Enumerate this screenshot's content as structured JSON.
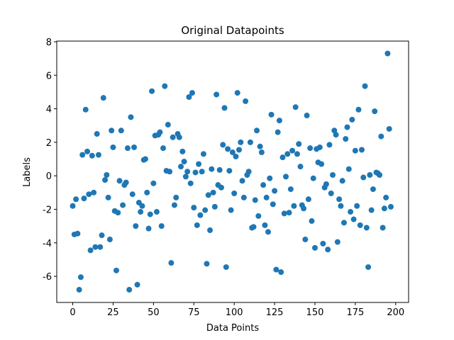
{
  "chart_data": {
    "type": "scatter",
    "title": "Original Datapoints",
    "x_label": "Data Points",
    "y_label": "Labels",
    "color": "#1f77b4",
    "x": [
      0,
      1,
      2,
      3,
      4,
      5,
      6,
      7,
      8,
      9,
      10,
      11,
      12,
      13,
      14,
      15,
      16,
      17,
      18,
      19,
      20,
      21,
      22,
      23,
      24,
      25,
      26,
      27,
      28,
      29,
      30,
      31,
      32,
      33,
      34,
      35,
      36,
      37,
      38,
      39,
      40,
      41,
      42,
      43,
      44,
      45,
      46,
      47,
      48,
      49,
      50,
      51,
      52,
      53,
      54,
      55,
      56,
      57,
      58,
      59,
      60,
      61,
      62,
      63,
      64,
      65,
      66,
      67,
      68,
      69,
      70,
      71,
      72,
      73,
      74,
      75,
      76,
      77,
      78,
      79,
      80,
      81,
      82,
      83,
      84,
      85,
      86,
      87,
      88,
      89,
      90,
      91,
      92,
      93,
      94,
      95,
      96,
      97,
      98,
      99,
      100,
      101,
      102,
      103,
      104,
      105,
      106,
      107,
      108,
      109,
      110,
      111,
      112,
      113,
      114,
      115,
      116,
      117,
      118,
      119,
      120,
      121,
      122,
      123,
      124,
      125,
      126,
      127,
      128,
      129,
      130,
      131,
      132,
      133,
      134,
      135,
      136,
      137,
      138,
      139,
      140,
      141,
      142,
      143,
      144,
      145,
      146,
      147,
      148,
      149,
      150,
      151,
      152,
      153,
      154,
      155,
      156,
      157,
      158,
      159,
      160,
      161,
      162,
      163,
      164,
      165,
      166,
      167,
      168,
      169,
      170,
      171,
      172,
      173,
      174,
      175,
      176,
      177,
      178,
      179,
      180,
      181,
      182,
      183,
      184,
      185,
      186,
      187,
      188,
      189,
      190,
      191,
      192,
      193,
      194,
      195,
      196,
      197
    ],
    "values": [
      -1.8,
      -3.5,
      -1.4,
      -3.45,
      -6.8,
      -6.05,
      1.25,
      -1.35,
      3.95,
      1.45,
      -1.1,
      -4.45,
      1.2,
      -1.0,
      -4.25,
      2.5,
      1.25,
      -4.25,
      -3.55,
      4.65,
      -0.25,
      0.05,
      -1.3,
      -3.8,
      2.7,
      1.7,
      -2.1,
      -5.65,
      -2.2,
      -0.3,
      2.7,
      -1.75,
      -0.55,
      -0.4,
      1.65,
      -6.8,
      3.5,
      -1.1,
      1.7,
      -3.0,
      -6.5,
      -1.6,
      -2.15,
      -1.8,
      0.95,
      1.0,
      -1.0,
      -3.15,
      -2.3,
      5.05,
      -0.45,
      2.4,
      -2.15,
      2.45,
      2.6,
      -3.0,
      1.65,
      5.35,
      0.3,
      3.05,
      0.25,
      -5.2,
      2.3,
      -1.75,
      -1.3,
      2.5,
      2.3,
      0.55,
      1.45,
      0.85,
      -0.05,
      0.25,
      4.7,
      -0.45,
      4.95,
      -1.9,
      0.2,
      -2.95,
      0.7,
      -2.35,
      0.25,
      1.3,
      -2.05,
      -5.25,
      -1.15,
      -3.25,
      0.4,
      -1.0,
      -1.85,
      4.85,
      -0.55,
      0.35,
      -0.7,
      1.85,
      4.05,
      -5.45,
      1.6,
      0.3,
      -2.05,
      1.4,
      -1.05,
      1.15,
      4.95,
      1.55,
      2.0,
      -0.3,
      -1.3,
      4.45,
      0.05,
      0.25,
      2.0,
      -3.1,
      -3.05,
      -1.45,
      2.7,
      -2.4,
      1.75,
      1.4,
      -0.55,
      -2.95,
      -1.3,
      -3.35,
      -0.15,
      3.65,
      -1.7,
      -0.9,
      -5.6,
      2.6,
      3.3,
      -5.75,
      1.1,
      -2.25,
      -0.05,
      1.3,
      -2.2,
      -0.8,
      1.5,
      -1.8,
      4.1,
      1.3,
      1.9,
      0.55,
      -1.75,
      -1.95,
      -3.8,
      3.6,
      -1.4,
      1.65,
      -2.7,
      -0.15,
      -4.3,
      1.6,
      0.8,
      1.7,
      0.7,
      -4.05,
      -0.7,
      -0.5,
      -4.4,
      1.85,
      -1.05,
      0.05,
      2.7,
      2.45,
      -3.95,
      -1.4,
      -1.8,
      -0.3,
      -2.8,
      2.2,
      2.9,
      0.4,
      -2.15,
      3.35,
      -2.6,
      1.5,
      -1.8,
      3.95,
      -2.95,
      1.55,
      -0.1,
      5.35,
      -3.1,
      -5.45,
      0.05,
      -2.05,
      -0.8,
      3.85,
      0.2,
      0.15,
      0.05,
      2.35,
      -3.1,
      -1.95,
      -1.3,
      7.3,
      2.8,
      -1.85
    ],
    "xlim": [
      -9.9,
      208
    ],
    "ylim": [
      -7.56,
      8.04
    ],
    "xticks": [
      0,
      25,
      50,
      75,
      100,
      125,
      150,
      175,
      200
    ],
    "yticks": [
      -6,
      -4,
      -2,
      0,
      2,
      4,
      6,
      8
    ]
  }
}
